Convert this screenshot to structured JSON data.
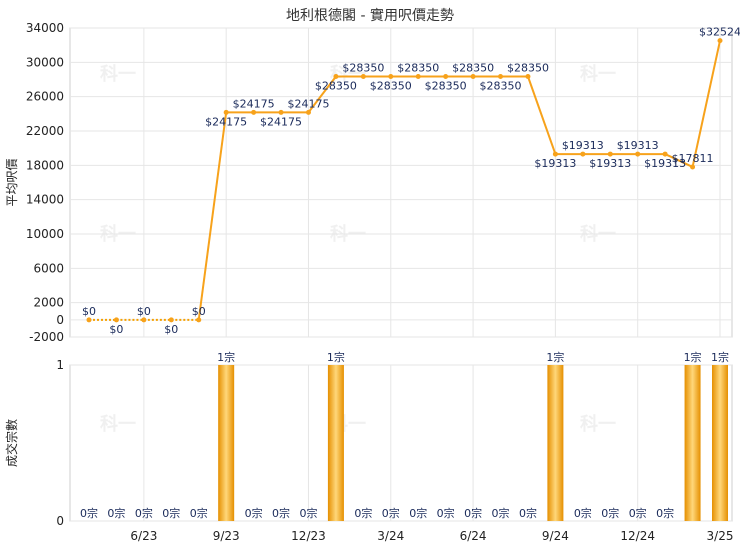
{
  "chart_data": [
    {
      "type": "line",
      "title": "地利根德閣 - 實用呎價走勢",
      "ylabel": "平均呎價",
      "ylim": [
        -2000,
        34000
      ],
      "y_ticks": [
        "-2000",
        "0",
        "2000",
        "6000",
        "10000",
        "14000",
        "18000",
        "22000",
        "26000",
        "30000",
        "34000"
      ],
      "x_ticks": [
        "6/23",
        "9/23",
        "12/23",
        "3/24",
        "6/24",
        "9/24",
        "12/24",
        "3/25"
      ],
      "grid": true,
      "colors": {
        "line_dotted": "#F5A000",
        "line": "#F7A21B",
        "marker": "#F7A21B",
        "label": "#1A2A5A"
      },
      "points": [
        {
          "x": "2023-04",
          "y": 0,
          "label": "$0"
        },
        {
          "x": "2023-05",
          "y": 0,
          "label": "$0"
        },
        {
          "x": "2023-06",
          "y": 0,
          "label": "$0"
        },
        {
          "x": "2023-07",
          "y": 0,
          "label": "$0"
        },
        {
          "x": "2023-08",
          "y": 0,
          "label": "$0"
        },
        {
          "x": "2023-09",
          "y": 24175,
          "label": "$24175"
        },
        {
          "x": "2023-10",
          "y": 24175,
          "label": "$24175"
        },
        {
          "x": "2023-11",
          "y": 24175,
          "label": "$24175"
        },
        {
          "x": "2023-12",
          "y": 24175,
          "label": "$24175"
        },
        {
          "x": "2024-01",
          "y": 28350,
          "label": "$28350"
        },
        {
          "x": "2024-02",
          "y": 28350,
          "label": "$28350"
        },
        {
          "x": "2024-03",
          "y": 28350,
          "label": "$28350"
        },
        {
          "x": "2024-04",
          "y": 28350,
          "label": "$28350"
        },
        {
          "x": "2024-05",
          "y": 28350,
          "label": "$28350"
        },
        {
          "x": "2024-06",
          "y": 28350,
          "label": "$28350"
        },
        {
          "x": "2024-07",
          "y": 28350,
          "label": "$28350"
        },
        {
          "x": "2024-08",
          "y": 28350,
          "label": "$28350"
        },
        {
          "x": "2024-09",
          "y": 19313,
          "label": "$19313"
        },
        {
          "x": "2024-10",
          "y": 19313,
          "label": "$19313"
        },
        {
          "x": "2024-11",
          "y": 19313,
          "label": "$19313"
        },
        {
          "x": "2024-12",
          "y": 19313,
          "label": "$19313"
        },
        {
          "x": "2025-01",
          "y": 19313,
          "label": "$19313"
        },
        {
          "x": "2025-02",
          "y": 17811,
          "label": "$17811"
        },
        {
          "x": "2025-03",
          "y": 32524,
          "label": "$32524"
        }
      ]
    },
    {
      "type": "bar",
      "ylabel": "成交宗數",
      "ylim": [
        0,
        1
      ],
      "y_ticks": [
        "0",
        "1"
      ],
      "x_ticks": [
        "6/23",
        "9/23",
        "12/23",
        "3/24",
        "6/24",
        "9/24",
        "12/24",
        "3/25"
      ],
      "grid": true,
      "colors": {
        "bar": "#F2A20F",
        "bar_light": "#FFD77A",
        "label": "#1A2A5A"
      },
      "categories": [
        "2023-04",
        "2023-05",
        "2023-06",
        "2023-07",
        "2023-08",
        "2023-09",
        "2023-10",
        "2023-11",
        "2023-12",
        "2024-01",
        "2024-02",
        "2024-03",
        "2024-04",
        "2024-05",
        "2024-06",
        "2024-07",
        "2024-08",
        "2024-09",
        "2024-10",
        "2024-11",
        "2024-12",
        "2025-01",
        "2025-02",
        "2025-03"
      ],
      "values": [
        0,
        0,
        0,
        0,
        0,
        1,
        0,
        0,
        0,
        1,
        0,
        0,
        0,
        0,
        0,
        0,
        0,
        1,
        0,
        0,
        0,
        0,
        1,
        1
      ],
      "labels": [
        "0宗",
        "0宗",
        "0宗",
        "0宗",
        "0宗",
        "1宗",
        "0宗",
        "0宗",
        "0宗",
        "1宗",
        "0宗",
        "0宗",
        "0宗",
        "0宗",
        "0宗",
        "0宗",
        "0宗",
        "1宗",
        "0宗",
        "0宗",
        "0宗",
        "0宗",
        "1宗",
        "1宗"
      ]
    }
  ],
  "watermark": "科一"
}
